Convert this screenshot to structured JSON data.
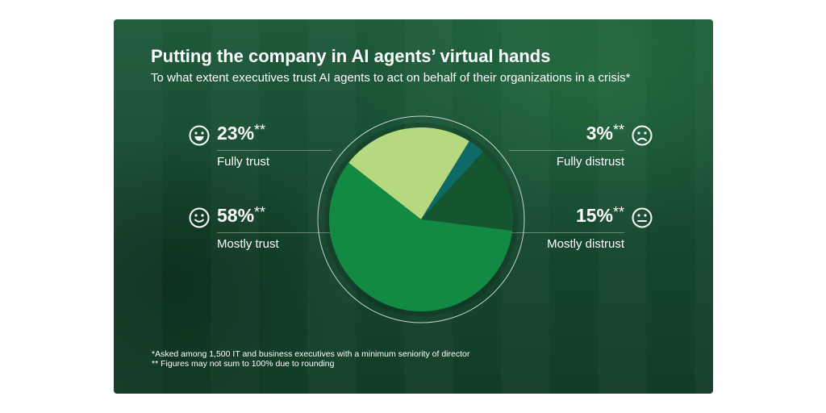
{
  "header": {
    "title": "Putting the company in AI agents’ virtual hands",
    "subtitle": "To what extent executives trust AI agents to act on behalf of their organizations in a crisis*"
  },
  "stats": {
    "fully_trust": {
      "value": "23%",
      "mark": "**",
      "label": "Fully trust",
      "icon": "very-happy-face-icon"
    },
    "mostly_trust": {
      "value": "58%",
      "mark": "**",
      "label": "Mostly trust",
      "icon": "smiling-face-icon"
    },
    "fully_distrust": {
      "value": "3%",
      "mark": "**",
      "label": "Fully distrust",
      "icon": "frowning-face-icon"
    },
    "mostly_distrust": {
      "value": "15%",
      "mark": "**",
      "label": "Mostly distrust",
      "icon": "neutral-face-icon"
    }
  },
  "chart_data": {
    "type": "pie",
    "categories": [
      "Fully trust",
      "Fully distrust",
      "Mostly distrust",
      "Mostly trust"
    ],
    "values": [
      23,
      3,
      15,
      58
    ],
    "colors": [
      "#b6d97f",
      "#0e6a66",
      "#14562f",
      "#138a44"
    ],
    "legend": "none"
  },
  "footnotes": {
    "asked": "*Asked among 1,500 IT and business executives with a minimum seniority of director",
    "rounding": "** Figures may not sum to 100% due to rounding"
  }
}
